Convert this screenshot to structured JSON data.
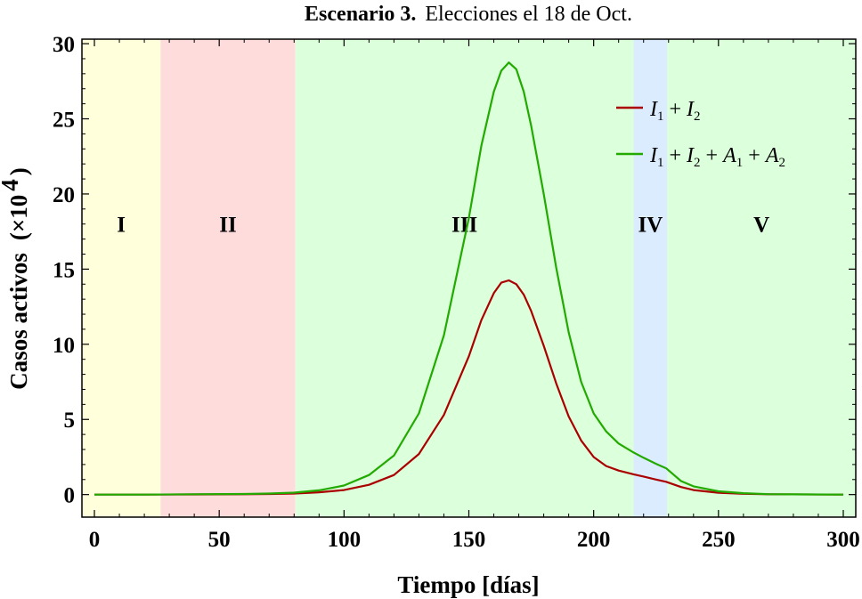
{
  "chart_data": {
    "type": "line",
    "title_bold": "Escenario 3.",
    "title_rest": "Elecciones el 18 de Oct.",
    "xlabel": "Tiempo [días]",
    "ylabel": "Casos activos",
    "ylabel_unit": "(×10",
    "ylabel_exp": "4",
    "ylabel_close": ")",
    "xlim": [
      -5,
      305
    ],
    "ylim": [
      -1.5,
      30.3
    ],
    "xticks": [
      0,
      50,
      100,
      150,
      200,
      250,
      300
    ],
    "xtick_labels": [
      "0",
      "50",
      "100",
      "150",
      "200",
      "250",
      "300"
    ],
    "yticks": [
      0,
      5,
      10,
      15,
      20,
      25,
      30
    ],
    "ytick_labels": [
      "0",
      "5",
      "10",
      "15",
      "20",
      "25",
      "30"
    ],
    "regions": [
      {
        "label": "I",
        "x0": -5,
        "x1": 26.5,
        "color": "#ffffdc"
      },
      {
        "label": "II",
        "x0": 26.5,
        "x1": 80.5,
        "color": "#ffdcdc"
      },
      {
        "label": "III",
        "x0": 80.5,
        "x1": 216,
        "color": "#dcffdc"
      },
      {
        "label": "IV",
        "x0": 216,
        "x1": 229.5,
        "color": "#dcecff"
      },
      {
        "label": "V",
        "x0": 229.5,
        "x1": 305,
        "color": "#dcffdc"
      }
    ],
    "region_label_y": 18,
    "legend_position": "top-right",
    "series": [
      {
        "name": "I1 + I2",
        "color": "#aa0000",
        "points": [
          [
            0,
            0
          ],
          [
            20,
            0
          ],
          [
            40,
            0.01
          ],
          [
            60,
            0.02
          ],
          [
            70,
            0.04
          ],
          [
            80,
            0.07
          ],
          [
            90,
            0.15
          ],
          [
            100,
            0.3
          ],
          [
            110,
            0.65
          ],
          [
            120,
            1.3
          ],
          [
            130,
            2.7
          ],
          [
            140,
            5.3
          ],
          [
            150,
            9.2
          ],
          [
            155,
            11.6
          ],
          [
            160,
            13.4
          ],
          [
            163,
            14.1
          ],
          [
            166,
            14.25
          ],
          [
            169,
            14.0
          ],
          [
            172,
            13.3
          ],
          [
            175,
            12.2
          ],
          [
            180,
            9.9
          ],
          [
            185,
            7.4
          ],
          [
            190,
            5.2
          ],
          [
            195,
            3.6
          ],
          [
            200,
            2.5
          ],
          [
            205,
            1.9
          ],
          [
            210,
            1.6
          ],
          [
            216,
            1.35
          ],
          [
            220,
            1.2
          ],
          [
            225,
            1.0
          ],
          [
            229,
            0.85
          ],
          [
            235,
            0.5
          ],
          [
            240,
            0.3
          ],
          [
            250,
            0.12
          ],
          [
            260,
            0.05
          ],
          [
            270,
            0.02
          ],
          [
            300,
            0
          ]
        ]
      },
      {
        "name": "I1 + I2 + A1 + A2",
        "color": "#22aa00",
        "points": [
          [
            0,
            0
          ],
          [
            20,
            0
          ],
          [
            40,
            0.02
          ],
          [
            60,
            0.04
          ],
          [
            70,
            0.07
          ],
          [
            80,
            0.13
          ],
          [
            90,
            0.28
          ],
          [
            100,
            0.6
          ],
          [
            110,
            1.3
          ],
          [
            120,
            2.6
          ],
          [
            130,
            5.4
          ],
          [
            140,
            10.6
          ],
          [
            150,
            18.4
          ],
          [
            155,
            23.2
          ],
          [
            160,
            26.8
          ],
          [
            163,
            28.2
          ],
          [
            166,
            28.75
          ],
          [
            169,
            28.3
          ],
          [
            172,
            26.8
          ],
          [
            175,
            24.5
          ],
          [
            180,
            20.0
          ],
          [
            185,
            15.1
          ],
          [
            190,
            10.8
          ],
          [
            195,
            7.5
          ],
          [
            200,
            5.4
          ],
          [
            205,
            4.2
          ],
          [
            210,
            3.4
          ],
          [
            216,
            2.8
          ],
          [
            220,
            2.45
          ],
          [
            225,
            2.05
          ],
          [
            229,
            1.75
          ],
          [
            235,
            0.9
          ],
          [
            240,
            0.55
          ],
          [
            250,
            0.22
          ],
          [
            260,
            0.09
          ],
          [
            270,
            0.03
          ],
          [
            300,
            0
          ]
        ]
      }
    ]
  }
}
